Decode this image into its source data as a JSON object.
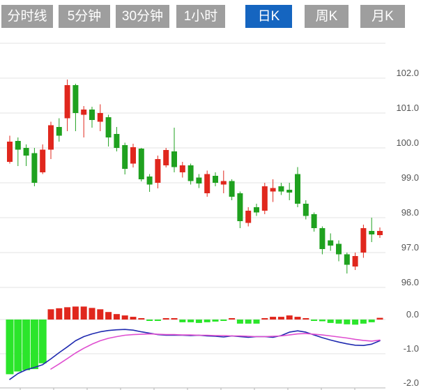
{
  "tabs": {
    "items": [
      {
        "id": "timeshare",
        "label": "分时线",
        "active": false
      },
      {
        "id": "5min",
        "label": "5分钟",
        "active": false
      },
      {
        "id": "30min",
        "label": "30分钟",
        "active": false
      },
      {
        "id": "1hour",
        "label": "1小时",
        "active": false
      },
      {
        "id": "daily",
        "label": "日K",
        "active": true
      },
      {
        "id": "weekly",
        "label": "周K",
        "active": false
      },
      {
        "id": "monthly",
        "label": "月K",
        "active": false
      }
    ],
    "active_bg": "#1565c0",
    "inactive_bg": "#9e9e9e",
    "text_color": "#ffffff"
  },
  "colors": {
    "up_red": "#e0271d",
    "down_green": "#1fa11f",
    "hist_green": "#2be52b",
    "hist_red": "#e0271d",
    "dif_line_blue": "#1f2ab0",
    "dea_line_magenta": "#df4ed0",
    "grid": "#e3e3e3",
    "axis": "#b5b5b5",
    "label_text": "#545454",
    "background": "#ffffff"
  },
  "chart_data": {
    "type": "candlestick_with_macd",
    "title": "",
    "price_axis": {
      "labels": [
        "102.0",
        "101.0",
        "100.0",
        "99.0",
        "98.0",
        "97.0",
        "96.0"
      ],
      "label_values": [
        102,
        101,
        100,
        99,
        98,
        97,
        96
      ],
      "gridline_values": [
        103,
        102,
        101,
        100,
        99,
        98,
        97,
        96
      ],
      "range": [
        95.9,
        103.0
      ],
      "side": "right",
      "grid": "on"
    },
    "macd_axis": {
      "labels": [
        "0.0",
        "-1.0",
        "-2.0"
      ],
      "label_values": [
        0,
        -1,
        -2
      ],
      "range": [
        -2.0,
        0.5
      ],
      "side": "right"
    },
    "candles_ohlc_order": "open,high,low,close",
    "candles_ohlc": [
      [
        99.6,
        100.35,
        99.55,
        100.18
      ],
      [
        100.2,
        100.3,
        99.48,
        99.95
      ],
      [
        100.0,
        100.1,
        99.48,
        99.78
      ],
      [
        99.85,
        100.0,
        98.9,
        99.0
      ],
      [
        99.3,
        100.1,
        99.25,
        99.95
      ],
      [
        99.95,
        100.75,
        99.68,
        100.65
      ],
      [
        100.6,
        100.85,
        100.18,
        100.35
      ],
      [
        100.85,
        101.96,
        100.48,
        101.8
      ],
      [
        101.8,
        101.84,
        100.48,
        101.0
      ],
      [
        100.95,
        101.2,
        100.3,
        101.1
      ],
      [
        101.1,
        101.18,
        100.58,
        100.8
      ],
      [
        100.75,
        101.25,
        100.48,
        101.0
      ],
      [
        100.88,
        100.95,
        100.04,
        100.3
      ],
      [
        100.4,
        100.6,
        99.9,
        100.0
      ],
      [
        100.08,
        100.15,
        99.24,
        99.4
      ],
      [
        99.55,
        100.12,
        99.44,
        100.02
      ],
      [
        99.98,
        100.0,
        99.04,
        99.1
      ],
      [
        99.18,
        99.25,
        98.74,
        98.95
      ],
      [
        99.0,
        99.78,
        98.84,
        99.68
      ],
      [
        99.5,
        100.0,
        99.44,
        99.94
      ],
      [
        99.9,
        100.58,
        99.3,
        99.45
      ],
      [
        99.3,
        99.6,
        99.15,
        99.5
      ],
      [
        99.5,
        99.55,
        98.95,
        99.05
      ],
      [
        99.15,
        99.25,
        98.85,
        98.98
      ],
      [
        98.7,
        99.35,
        98.6,
        99.25
      ],
      [
        99.2,
        99.3,
        98.9,
        99.0
      ],
      [
        98.95,
        99.35,
        98.7,
        99.05
      ],
      [
        99.05,
        99.1,
        98.5,
        98.6
      ],
      [
        98.7,
        98.75,
        97.7,
        97.9
      ],
      [
        97.85,
        98.3,
        97.75,
        98.2
      ],
      [
        98.3,
        98.4,
        98.05,
        98.15
      ],
      [
        98.2,
        99.0,
        98.1,
        98.9
      ],
      [
        98.75,
        99.1,
        98.45,
        98.85
      ],
      [
        98.9,
        99.0,
        98.65,
        98.75
      ],
      [
        98.8,
        99.0,
        98.5,
        98.72
      ],
      [
        99.25,
        99.45,
        98.3,
        98.4
      ],
      [
        98.4,
        98.5,
        97.95,
        98.05
      ],
      [
        98.1,
        98.15,
        97.6,
        97.7
      ],
      [
        97.7,
        97.75,
        96.95,
        97.1
      ],
      [
        97.35,
        97.55,
        97.05,
        97.2
      ],
      [
        97.25,
        97.35,
        96.75,
        96.95
      ],
      [
        96.95,
        97.0,
        96.4,
        96.65
      ],
      [
        96.6,
        97.0,
        96.5,
        96.9
      ],
      [
        97.0,
        97.8,
        96.85,
        97.7
      ],
      [
        97.62,
        98.0,
        97.3,
        97.52
      ],
      [
        97.5,
        97.72,
        97.42,
        97.62
      ]
    ],
    "macd": {
      "histogram": [
        -1.6,
        -1.52,
        -1.48,
        -1.45,
        -1.28,
        0.3,
        0.33,
        0.36,
        0.38,
        0.38,
        0.34,
        0.3,
        0.22,
        0.16,
        0.12,
        0.08,
        0.04,
        -0.03,
        -0.03,
        0.03,
        0.02,
        -0.08,
        -0.08,
        -0.1,
        -0.08,
        -0.06,
        -0.02,
        0.04,
        -0.12,
        -0.12,
        -0.12,
        0.02,
        0.08,
        0.08,
        0.12,
        0.08,
        0.03,
        -0.02,
        -0.05,
        -0.1,
        -0.12,
        -0.14,
        -0.15,
        -0.12,
        -0.08,
        0.05
      ],
      "dif": [
        -1.75,
        -1.58,
        -1.47,
        -1.4,
        -1.32,
        -1.15,
        -0.97,
        -0.8,
        -0.62,
        -0.5,
        -0.42,
        -0.36,
        -0.32,
        -0.3,
        -0.29,
        -0.31,
        -0.36,
        -0.4,
        -0.44,
        -0.46,
        -0.46,
        -0.46,
        -0.47,
        -0.46,
        -0.48,
        -0.49,
        -0.51,
        -0.48,
        -0.5,
        -0.52,
        -0.5,
        -0.5,
        -0.52,
        -0.47,
        -0.37,
        -0.33,
        -0.37,
        -0.45,
        -0.53,
        -0.6,
        -0.66,
        -0.71,
        -0.75,
        -0.76,
        -0.72,
        -0.62
      ],
      "dea": [
        null,
        null,
        null,
        null,
        null,
        -1.45,
        -1.3,
        -1.14,
        -0.98,
        -0.84,
        -0.72,
        -0.62,
        -0.55,
        -0.5,
        -0.46,
        -0.44,
        -0.43,
        -0.42,
        -0.43,
        -0.44,
        -0.44,
        -0.45,
        -0.45,
        -0.46,
        -0.46,
        -0.47,
        -0.47,
        -0.48,
        -0.48,
        -0.49,
        -0.5,
        -0.5,
        -0.49,
        -0.48,
        -0.45,
        -0.42,
        -0.41,
        -0.43,
        -0.45,
        -0.48,
        -0.51,
        -0.54,
        -0.58,
        -0.61,
        -0.63,
        -0.6
      ]
    }
  }
}
